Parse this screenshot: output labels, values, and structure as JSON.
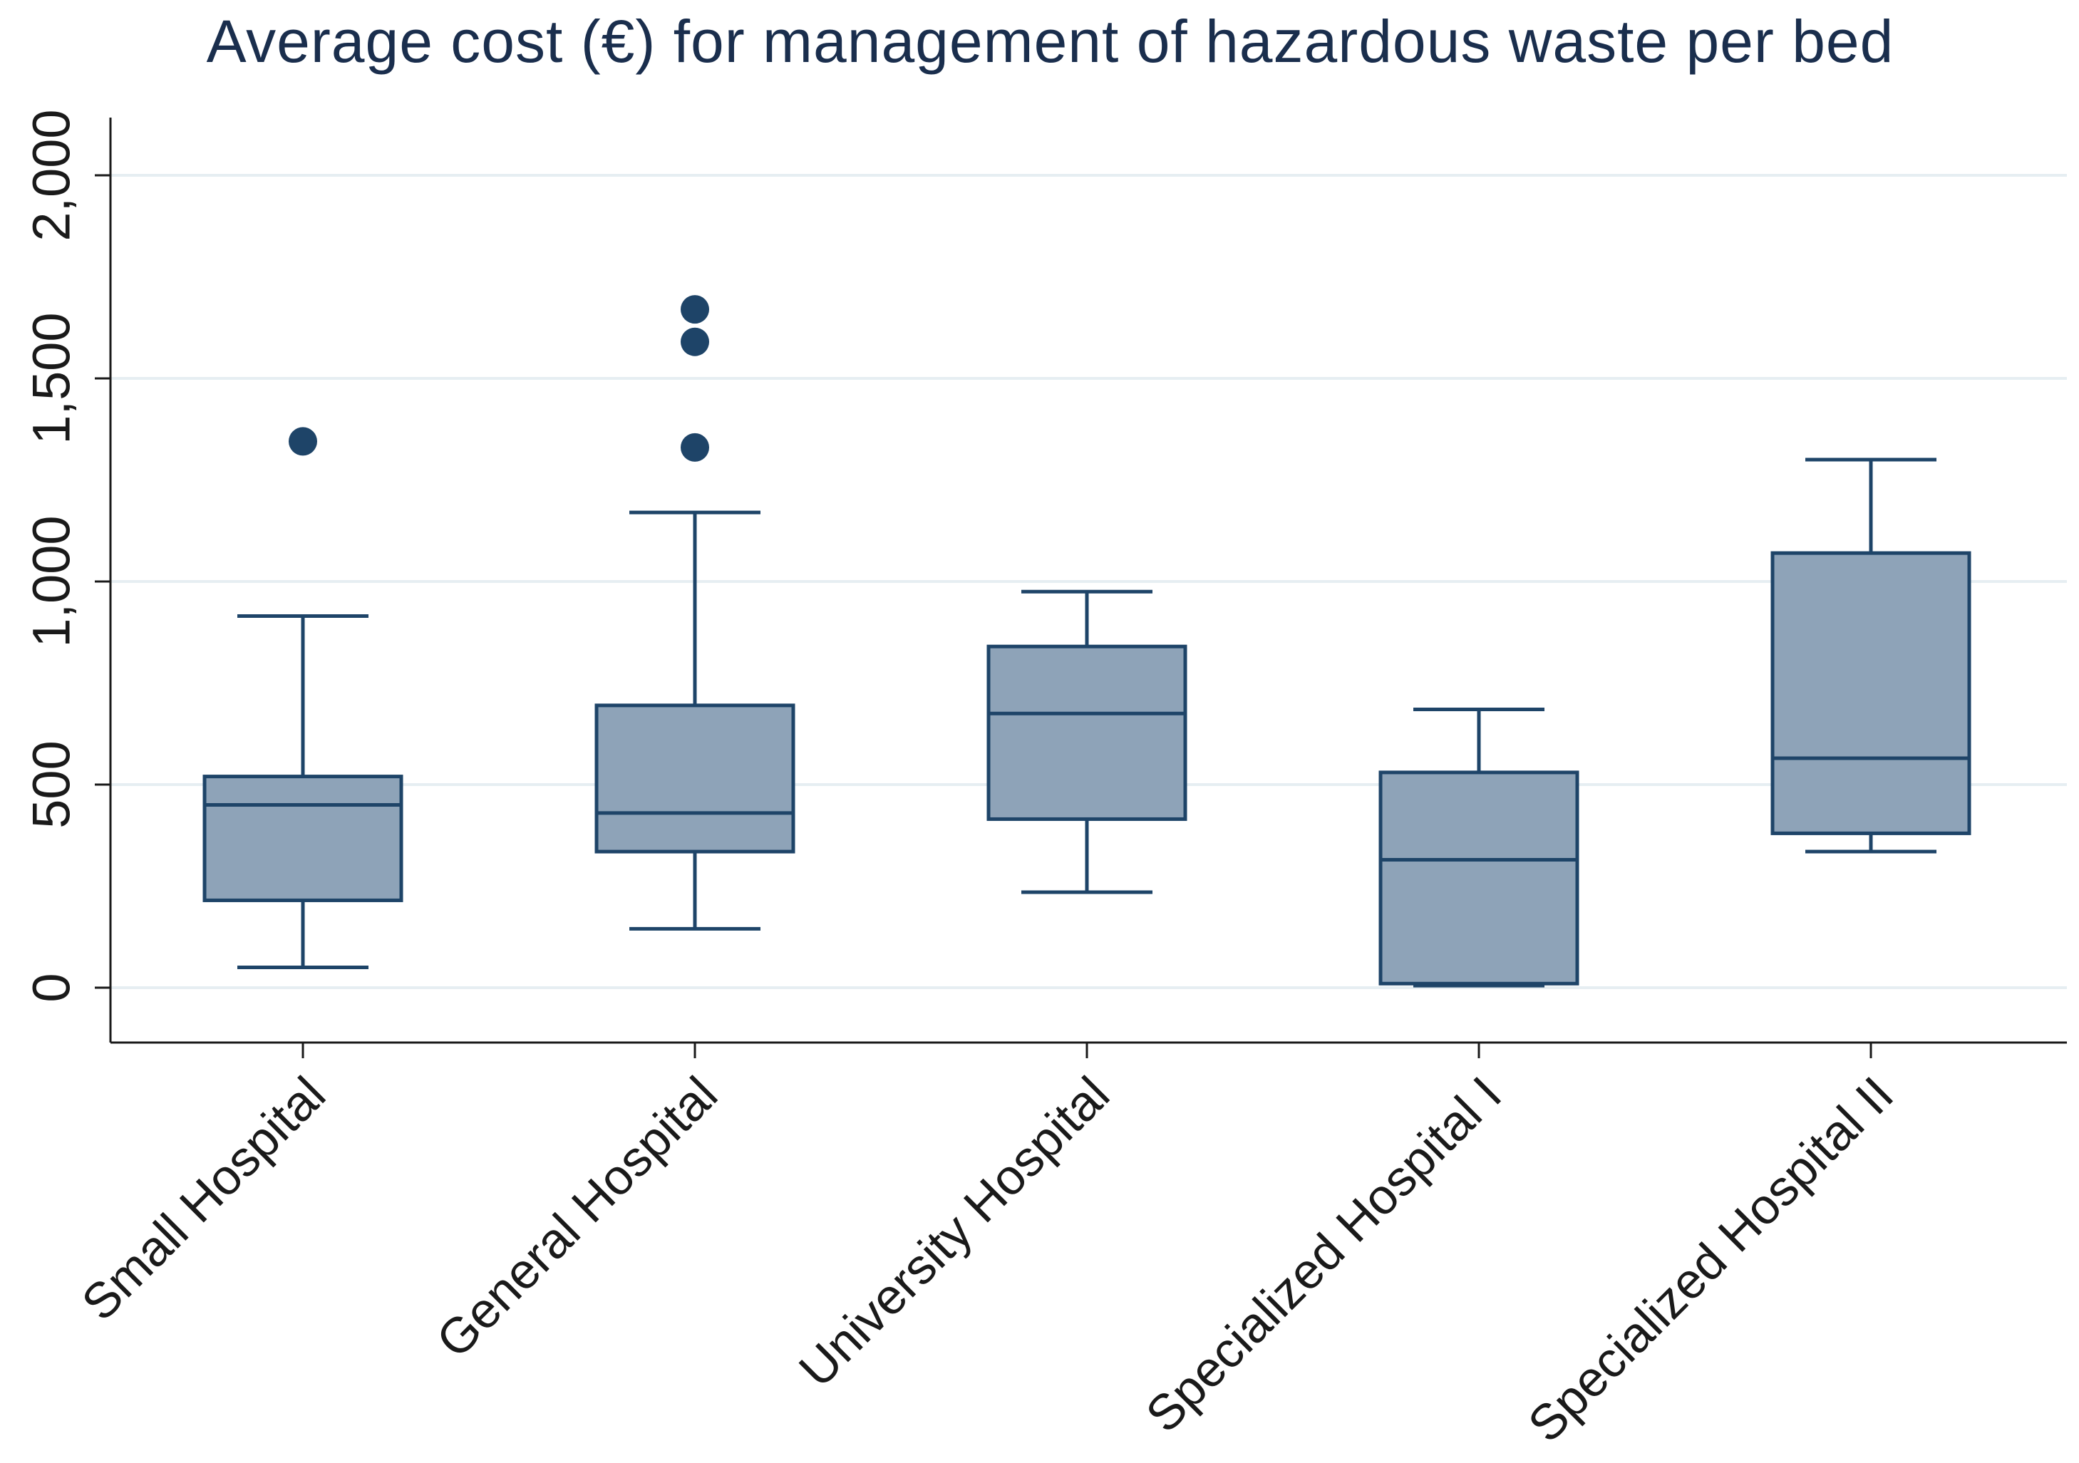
{
  "chart_data": {
    "type": "boxplot",
    "title": "Average cost (€) for management of hazardous waste per bed",
    "xlabel": "",
    "ylabel": "",
    "ylim": [
      -135,
      2150
    ],
    "yticks": [
      0,
      500,
      1000,
      1500,
      2000
    ],
    "ytick_labels": [
      "0",
      "500",
      "1,000",
      "1,500",
      "2,000"
    ],
    "categories": [
      "Small Hospital",
      "General Hospital",
      "University Hospital",
      "Specialized Hospital I",
      "Specialized Hospital II"
    ],
    "boxes": [
      {
        "name": "Small Hospital",
        "whisker_low": 50,
        "q1": 215,
        "median": 450,
        "q3": 520,
        "whisker_high": 915,
        "outliers": [
          1345
        ]
      },
      {
        "name": "General Hospital",
        "whisker_low": 145,
        "q1": 335,
        "median": 430,
        "q3": 695,
        "whisker_high": 1170,
        "outliers": [
          1330,
          1590,
          1670
        ]
      },
      {
        "name": "University Hospital",
        "whisker_low": 235,
        "q1": 415,
        "median": 675,
        "q3": 840,
        "whisker_high": 975,
        "outliers": []
      },
      {
        "name": "Specialized Hospital I",
        "whisker_low": 5,
        "q1": 10,
        "median": 315,
        "q3": 530,
        "whisker_high": 685,
        "outliers": []
      },
      {
        "name": "Specialized Hospital II",
        "whisker_low": 335,
        "q1": 380,
        "median": 565,
        "q3": 1070,
        "whisker_high": 1300,
        "outliers": []
      }
    ],
    "grid": true,
    "colors": {
      "box_fill": "#8ea3b8",
      "box_stroke": "#1e4468",
      "outlier": "#1e4468",
      "grid": "#e6eef2",
      "axis": "#1a1a1a"
    }
  }
}
